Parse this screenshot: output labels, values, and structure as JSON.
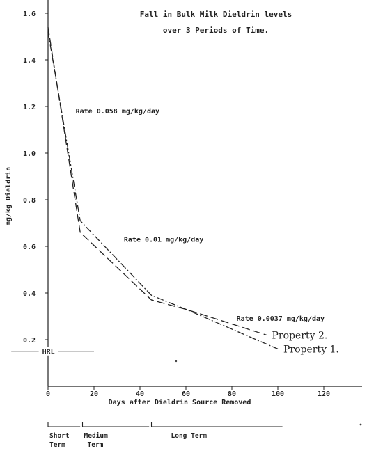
{
  "chart_data": {
    "type": "line",
    "title_line1": "Fall in Bulk Milk Dieldrin levels",
    "title_line2": "over 3 Periods of Time.",
    "xlabel": "Days after Dieldrin Source Removed",
    "ylabel": "mg/kg Dieldrin",
    "xlim": [
      0,
      130
    ],
    "ylim": [
      0,
      1.65
    ],
    "x_ticks": [
      0,
      20,
      40,
      60,
      80,
      100,
      120
    ],
    "y_ticks": [
      0.2,
      0.4,
      0.6,
      0.8,
      1.0,
      1.2,
      1.4,
      1.6
    ],
    "x_tick_labels": [
      "0",
      "20",
      "40",
      "60",
      "80",
      "100",
      "120"
    ],
    "y_tick_labels": [
      "0.2",
      "0.4",
      "0.6",
      "0.8",
      "1.0",
      "1.2",
      "1.4",
      "1.6"
    ],
    "grid": false,
    "series": [
      {
        "name": "Property 1.",
        "style": "dash-dot",
        "x": [
          0,
          14,
          45,
          60,
          100
        ],
        "y": [
          1.52,
          0.71,
          0.39,
          0.33,
          0.16
        ]
      },
      {
        "name": "Property 2.",
        "style": "dashed",
        "x": [
          0,
          14,
          45,
          60,
          95
        ],
        "y": [
          1.54,
          0.66,
          0.37,
          0.33,
          0.22
        ]
      }
    ],
    "annotations": [
      {
        "id": "rate1",
        "text": "Rate 0.058 mg/kg/day",
        "x": 12,
        "y": 1.17
      },
      {
        "id": "rate2",
        "text": "Rate 0.01 mg/kg/day",
        "x": 33,
        "y": 0.62
      },
      {
        "id": "rate3",
        "text": "Rate 0.0037 mg/kg/day",
        "x": 82,
        "y": 0.28
      }
    ],
    "hrl": {
      "text": "HRL",
      "y": 0.15,
      "x_start": -16,
      "x_end": 20
    },
    "phases": [
      {
        "line1": "Short",
        "line2": "Term",
        "x_start": 0,
        "x_end": 14
      },
      {
        "line1": "Medium",
        "line2": "Term",
        "x_start": 15,
        "x_end": 44
      },
      {
        "line1": "Long Term",
        "line2": "",
        "x_start": 45,
        "x_end": 102
      }
    ]
  }
}
